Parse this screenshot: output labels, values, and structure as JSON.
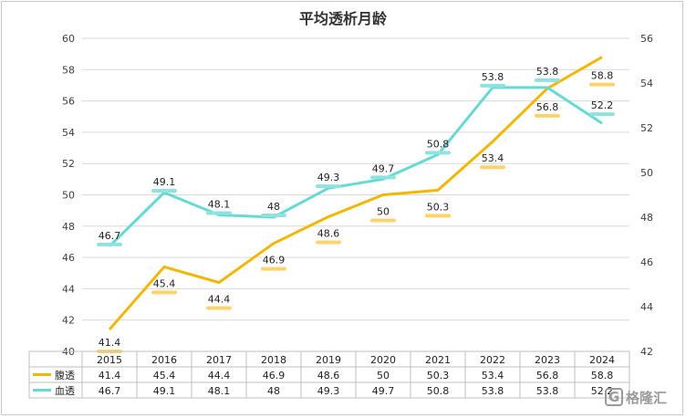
{
  "chart_data": {
    "type": "line",
    "title": "平均透析月龄",
    "categories": [
      "2015",
      "2016",
      "2017",
      "2018",
      "2019",
      "2020",
      "2021",
      "2022",
      "2023",
      "2024"
    ],
    "series": [
      {
        "name": "腹透",
        "axis": "left",
        "color": "#f2b705",
        "labels": [
          "41.4",
          "45.4",
          "44.4",
          "46.9",
          "48.6",
          "50",
          "50.3",
          "53.4",
          "56.8",
          "58.8"
        ],
        "values": [
          41.4,
          45.4,
          44.4,
          46.9,
          48.6,
          50,
          50.3,
          53.4,
          56.8,
          58.8
        ]
      },
      {
        "name": "血透",
        "axis": "right",
        "color": "#66d9d4",
        "labels": [
          "46.7",
          "49.1",
          "48.1",
          "48",
          "49.3",
          "49.7",
          "50.8",
          "53.8",
          "53.8",
          "52.2"
        ],
        "values": [
          46.7,
          49.1,
          48.1,
          48,
          49.3,
          49.7,
          50.8,
          53.8,
          53.8,
          52.2
        ]
      }
    ],
    "y_left": {
      "min": 40,
      "max": 60,
      "step": 2,
      "ticks": [
        "40",
        "42",
        "44",
        "46",
        "48",
        "50",
        "52",
        "54",
        "56",
        "58",
        "60"
      ]
    },
    "y_right": {
      "min": 42,
      "max": 56,
      "step": 2,
      "ticks": [
        "42",
        "44",
        "46",
        "48",
        "50",
        "52",
        "54",
        "56"
      ]
    },
    "grid": true,
    "data_table": true
  },
  "watermark": "格隆汇",
  "watermark_logo": "G"
}
